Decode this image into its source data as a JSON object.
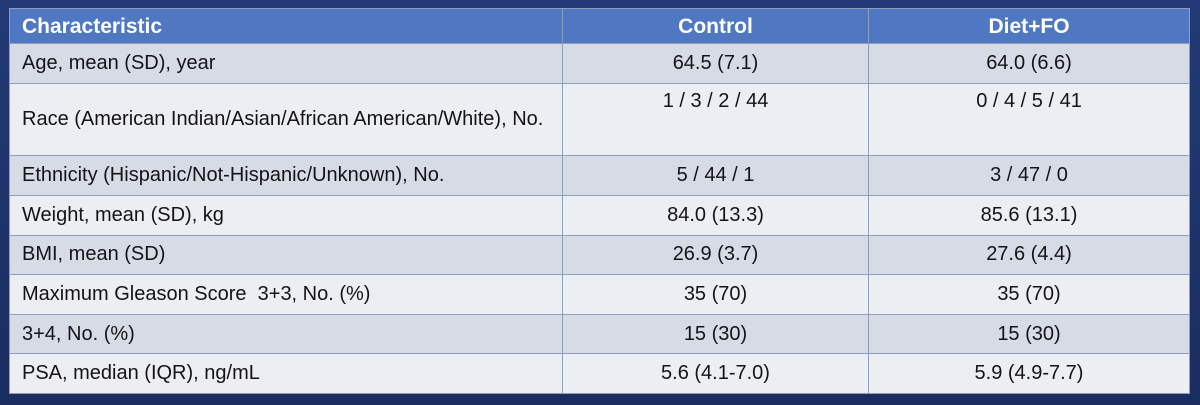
{
  "table": {
    "headers": [
      "Characteristic",
      "Control",
      "Diet+FO"
    ],
    "rows": [
      {
        "label": "Age, mean (SD), year",
        "control": "64.5 (7.1)",
        "diet_fo": "64.0 (6.6)"
      },
      {
        "label": "Race (American Indian/Asian/African American/White), No.",
        "control": "1 / 3 / 2 / 44",
        "diet_fo": "0 / 4 / 5 / 41"
      },
      {
        "label": "Ethnicity (Hispanic/Not-Hispanic/Unknown), No.",
        "control": "5 / 44 / 1",
        "diet_fo": "3 / 47 / 0"
      },
      {
        "label": "Weight, mean (SD), kg",
        "control": "84.0 (13.3)",
        "diet_fo": "85.6 (13.1)"
      },
      {
        "label": "BMI, mean (SD)",
        "control": "26.9 (3.7)",
        "diet_fo": "27.6 (4.4)"
      },
      {
        "label": "Maximum Gleason Score  3+3, No. (%)",
        "control": "35 (70)",
        "diet_fo": "35 (70)"
      },
      {
        "label": "3+4, No. (%)",
        "control": "15 (30)",
        "diet_fo": "15 (30)"
      },
      {
        "label": "PSA, median (IQR), ng/mL",
        "control": "5.6 (4.1-7.0)",
        "diet_fo": "5.9 (4.9-7.7)"
      }
    ]
  }
}
